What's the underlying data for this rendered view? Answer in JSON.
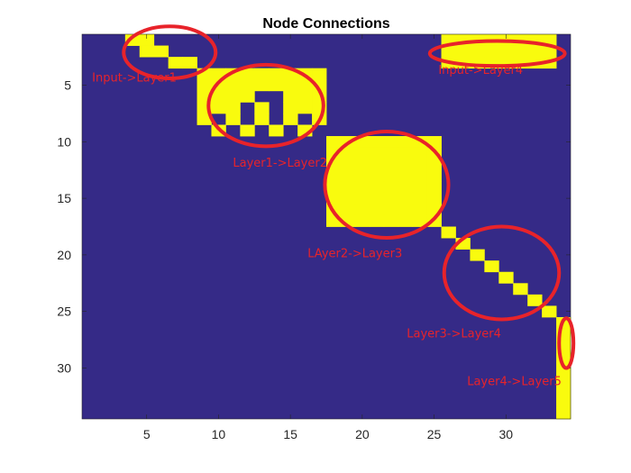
{
  "chart_data": {
    "type": "heatmap",
    "title": "Node Connections",
    "xlabel": "",
    "ylabel": "",
    "xlim": [
      0.5,
      34.5
    ],
    "ylim": [
      0.5,
      34.5
    ],
    "y_reversed": true,
    "x_ticks": [
      5,
      10,
      15,
      20,
      25,
      30
    ],
    "y_ticks": [
      5,
      10,
      15,
      20,
      25,
      30
    ],
    "grid": false,
    "colors": {
      "background": "#352A87",
      "cell": "#F9FB0E",
      "annotation": "#E8232A"
    },
    "cells_on": [
      [
        4,
        1
      ],
      [
        5,
        1
      ],
      [
        5,
        2
      ],
      [
        6,
        2
      ],
      [
        7,
        3
      ],
      [
        8,
        3
      ],
      [
        9,
        4
      ],
      [
        10,
        4
      ],
      [
        11,
        4
      ],
      [
        12,
        4
      ],
      [
        13,
        4
      ],
      [
        14,
        4
      ],
      [
        15,
        4
      ],
      [
        16,
        4
      ],
      [
        17,
        4
      ],
      [
        9,
        5
      ],
      [
        10,
        5
      ],
      [
        11,
        5
      ],
      [
        12,
        5
      ],
      [
        13,
        5
      ],
      [
        14,
        5
      ],
      [
        15,
        5
      ],
      [
        16,
        5
      ],
      [
        17,
        5
      ],
      [
        9,
        6
      ],
      [
        10,
        6
      ],
      [
        11,
        6
      ],
      [
        12,
        6
      ],
      [
        15,
        6
      ],
      [
        16,
        6
      ],
      [
        17,
        6
      ],
      [
        9,
        7
      ],
      [
        10,
        7
      ],
      [
        11,
        7
      ],
      [
        13,
        7
      ],
      [
        15,
        7
      ],
      [
        16,
        7
      ],
      [
        17,
        7
      ],
      [
        9,
        8
      ],
      [
        11,
        8
      ],
      [
        13,
        8
      ],
      [
        15,
        8
      ],
      [
        17,
        8
      ],
      [
        10,
        9
      ],
      [
        12,
        9
      ],
      [
        14,
        9
      ],
      [
        16,
        9
      ],
      [
        18,
        10
      ],
      [
        19,
        10
      ],
      [
        20,
        10
      ],
      [
        21,
        10
      ],
      [
        22,
        10
      ],
      [
        23,
        10
      ],
      [
        24,
        10
      ],
      [
        25,
        10
      ],
      [
        18,
        11
      ],
      [
        19,
        11
      ],
      [
        20,
        11
      ],
      [
        21,
        11
      ],
      [
        22,
        11
      ],
      [
        23,
        11
      ],
      [
        24,
        11
      ],
      [
        25,
        11
      ],
      [
        18,
        12
      ],
      [
        19,
        12
      ],
      [
        20,
        12
      ],
      [
        21,
        12
      ],
      [
        22,
        12
      ],
      [
        23,
        12
      ],
      [
        24,
        12
      ],
      [
        25,
        12
      ],
      [
        18,
        13
      ],
      [
        19,
        13
      ],
      [
        20,
        13
      ],
      [
        21,
        13
      ],
      [
        22,
        13
      ],
      [
        23,
        13
      ],
      [
        24,
        13
      ],
      [
        25,
        13
      ],
      [
        18,
        14
      ],
      [
        19,
        14
      ],
      [
        20,
        14
      ],
      [
        21,
        14
      ],
      [
        22,
        14
      ],
      [
        23,
        14
      ],
      [
        24,
        14
      ],
      [
        25,
        14
      ],
      [
        18,
        15
      ],
      [
        19,
        15
      ],
      [
        20,
        15
      ],
      [
        21,
        15
      ],
      [
        22,
        15
      ],
      [
        23,
        15
      ],
      [
        24,
        15
      ],
      [
        25,
        15
      ],
      [
        18,
        16
      ],
      [
        19,
        16
      ],
      [
        20,
        16
      ],
      [
        21,
        16
      ],
      [
        22,
        16
      ],
      [
        23,
        16
      ],
      [
        24,
        16
      ],
      [
        25,
        16
      ],
      [
        18,
        17
      ],
      [
        19,
        17
      ],
      [
        20,
        17
      ],
      [
        21,
        17
      ],
      [
        22,
        17
      ],
      [
        23,
        17
      ],
      [
        24,
        17
      ],
      [
        25,
        17
      ],
      [
        26,
        1
      ],
      [
        27,
        1
      ],
      [
        28,
        1
      ],
      [
        29,
        1
      ],
      [
        30,
        1
      ],
      [
        31,
        1
      ],
      [
        32,
        1
      ],
      [
        33,
        1
      ],
      [
        26,
        2
      ],
      [
        27,
        2
      ],
      [
        28,
        2
      ],
      [
        29,
        2
      ],
      [
        30,
        2
      ],
      [
        31,
        2
      ],
      [
        32,
        2
      ],
      [
        33,
        2
      ],
      [
        26,
        3
      ],
      [
        27,
        3
      ],
      [
        28,
        3
      ],
      [
        29,
        3
      ],
      [
        30,
        3
      ],
      [
        31,
        3
      ],
      [
        32,
        3
      ],
      [
        33,
        3
      ],
      [
        26,
        18
      ],
      [
        27,
        19
      ],
      [
        28,
        20
      ],
      [
        29,
        21
      ],
      [
        30,
        22
      ],
      [
        31,
        23
      ],
      [
        32,
        24
      ],
      [
        33,
        25
      ],
      [
        34,
        26
      ],
      [
        34,
        27
      ],
      [
        34,
        28
      ],
      [
        34,
        29
      ],
      [
        34,
        30
      ],
      [
        34,
        31
      ],
      [
        34,
        32
      ],
      [
        34,
        33
      ],
      [
        34,
        34
      ]
    ],
    "annotations": [
      {
        "label": "Input->Layer1",
        "x": 1.2,
        "y": 4.7,
        "ellipse": {
          "cx": 6.6,
          "cy": 2.1,
          "rx": 3.2,
          "ry": 2.3
        }
      },
      {
        "label": "Input->Layer4",
        "x": 25.3,
        "y": 4.0,
        "ellipse": {
          "cx": 29.4,
          "cy": 2.2,
          "rx": 4.7,
          "ry": 1.1
        }
      },
      {
        "label": "Layer1->Layer2",
        "x": 11.0,
        "y": 12.2,
        "ellipse": {
          "cx": 13.3,
          "cy": 6.8,
          "rx": 4.0,
          "ry": 3.6
        }
      },
      {
        "label": "LAyer2->Layer3",
        "x": 16.2,
        "y": 20.2,
        "ellipse": {
          "cx": 21.7,
          "cy": 13.8,
          "rx": 4.3,
          "ry": 4.7
        }
      },
      {
        "label": "Layer3->Layer4",
        "x": 23.1,
        "y": 27.3,
        "ellipse": {
          "cx": 29.7,
          "cy": 21.6,
          "rx": 4.0,
          "ry": 4.1
        }
      },
      {
        "label": "Layer4->Layer5",
        "x": 27.3,
        "y": 31.5,
        "ellipse": {
          "cx": 34.2,
          "cy": 27.8,
          "rx": 0.5,
          "ry": 2.2
        }
      }
    ]
  }
}
